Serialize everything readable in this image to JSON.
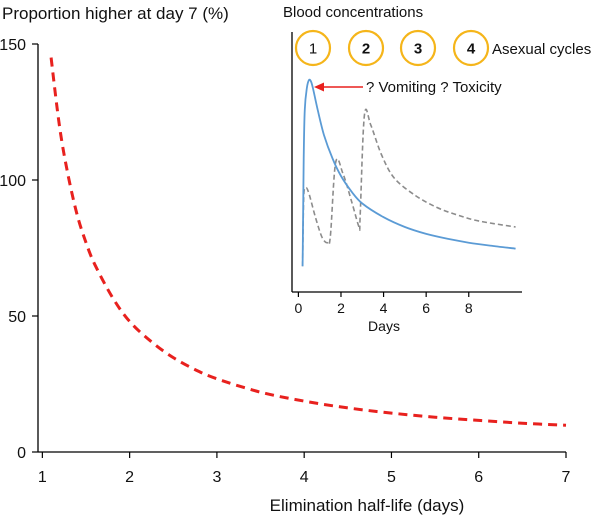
{
  "chart_data": [
    {
      "type": "line",
      "title": "",
      "ylabel": "Proportion higher at day 7 (%)",
      "xlabel": "Elimination half-life (days)",
      "xlim": [
        0.95,
        7.0
      ],
      "ylim": [
        0,
        150
      ],
      "xticks": [
        "1",
        "2",
        "3",
        "4",
        "5",
        "6",
        "7"
      ],
      "yticks": [
        "0",
        "50",
        "100",
        "150"
      ],
      "grid": false,
      "series": [
        {
          "style": "dashed",
          "color": "#e8211e",
          "x": [
            1.1,
            1.2,
            1.3,
            1.4,
            1.5,
            1.6,
            1.8,
            2.0,
            2.25,
            2.5,
            2.75,
            3.0,
            3.5,
            4.0,
            4.5,
            5.0,
            5.5,
            6.0,
            6.5,
            7.0
          ],
          "y": [
            145,
            119,
            101,
            87,
            77,
            69,
            57,
            48,
            40.5,
            34.7,
            30.3,
            26.9,
            22.0,
            18.7,
            16.2,
            14.3,
            12.8,
            11.6,
            10.6,
            9.8
          ]
        }
      ]
    },
    {
      "type": "line",
      "title": "Blood concentrations",
      "xlabel": "Days",
      "ylabel": "",
      "xlim": [
        -0.3,
        10.5
      ],
      "xticks": [
        "0",
        "2",
        "4",
        "6",
        "8"
      ],
      "yaxis_ticks_shown": false,
      "series": [
        {
          "style": "solid",
          "color": "#5b9bd5",
          "x": [
            0.2,
            0.25,
            0.3,
            0.4,
            0.5,
            0.6,
            0.7,
            0.9,
            1.2,
            1.6,
            2.0,
            2.5,
            3.0,
            4.0,
            5.0,
            6.0,
            7.0,
            8.0,
            9.0,
            10.2
          ],
          "y": [
            0.05,
            0.6,
            0.85,
            0.96,
            1.0,
            0.99,
            0.95,
            0.85,
            0.72,
            0.6,
            0.51,
            0.43,
            0.37,
            0.3,
            0.25,
            0.215,
            0.19,
            0.17,
            0.155,
            0.14
          ]
        },
        {
          "style": "dashed",
          "color": "#8c8c8c",
          "x": [
            0.2,
            0.25,
            0.35,
            0.5,
            0.8,
            1.1,
            1.35,
            1.5,
            1.75,
            2.1,
            2.5,
            2.85,
            2.9,
            3.1,
            3.4,
            3.9,
            4.5,
            5.5,
            6.5,
            7.5,
            8.5,
            10.2
          ],
          "y": [
            0.05,
            0.4,
            0.45,
            0.42,
            0.3,
            0.2,
            0.17,
            0.2,
            0.58,
            0.52,
            0.38,
            0.25,
            0.3,
            0.82,
            0.77,
            0.62,
            0.5,
            0.41,
            0.35,
            0.31,
            0.28,
            0.25
          ]
        }
      ]
    }
  ],
  "inset": {
    "cycles_label": "Asexual cycles",
    "cycles": [
      {
        "label": "1",
        "bold": false
      },
      {
        "label": "2",
        "bold": true
      },
      {
        "label": "3",
        "bold": true
      },
      {
        "label": "4",
        "bold": true
      }
    ],
    "annotation": "? Vomiting ? Toxicity",
    "annotation_color": "#e8211e"
  }
}
